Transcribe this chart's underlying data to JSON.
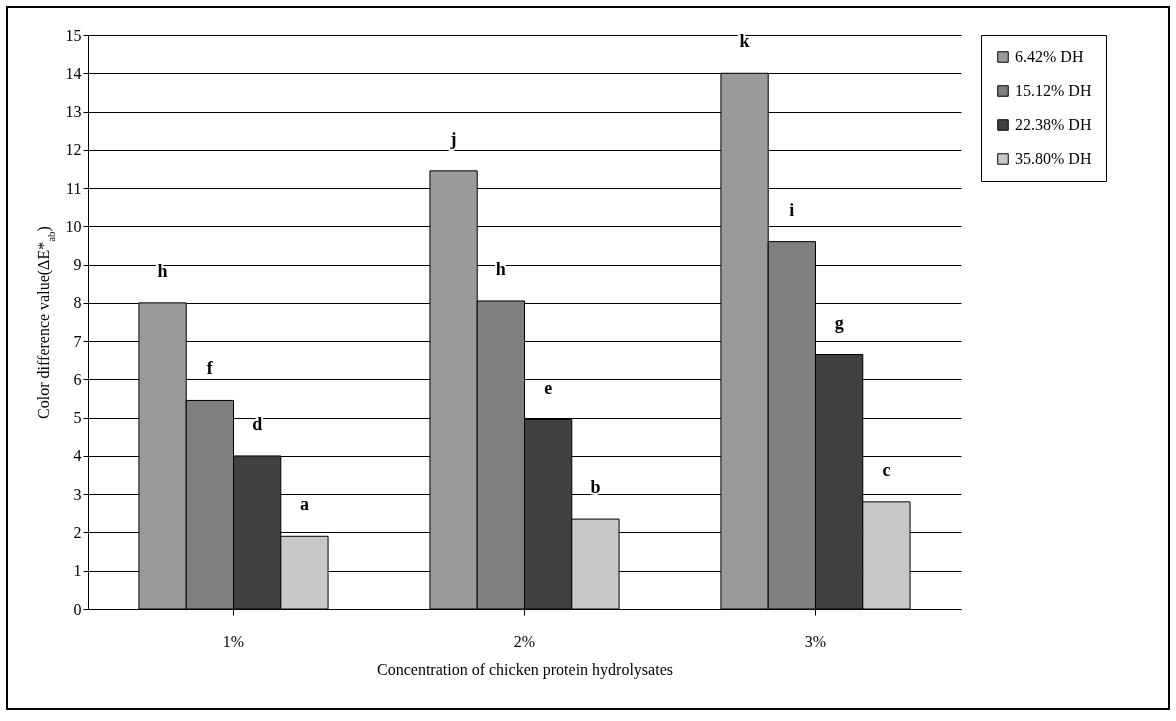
{
  "chart_data": {
    "type": "bar",
    "xlabel": "Concentration of chicken protein hydrolysates",
    "ylabel": "Color difference value(ΔE*$_{ab}$)",
    "categories": [
      "1%",
      "2%",
      "3%"
    ],
    "series": [
      {
        "name": "6.42% DH",
        "color": "#9a9a9a",
        "values": [
          8.0,
          11.45,
          14.0
        ],
        "value_labels": [
          "h",
          "j",
          "k"
        ]
      },
      {
        "name": "15.12% DH",
        "color": "#7f7f7f",
        "values": [
          5.45,
          8.05,
          9.6
        ],
        "value_labels": [
          "f",
          "h",
          "i"
        ]
      },
      {
        "name": "22.38% DH",
        "color": "#404040",
        "values": [
          4.0,
          4.95,
          6.65
        ],
        "value_labels": [
          "d",
          "e",
          "g"
        ]
      },
      {
        "name": "35.80% DH",
        "color": "#c8c8c8",
        "values": [
          1.9,
          2.35,
          2.8
        ],
        "value_labels": [
          "a",
          "b",
          "c"
        ]
      }
    ],
    "ylim": [
      0,
      15
    ],
    "yticks": [
      0,
      1,
      2,
      3,
      4,
      5,
      6,
      7,
      8,
      9,
      10,
      11,
      12,
      13,
      14,
      15
    ],
    "grid": "y",
    "legend": "right"
  }
}
